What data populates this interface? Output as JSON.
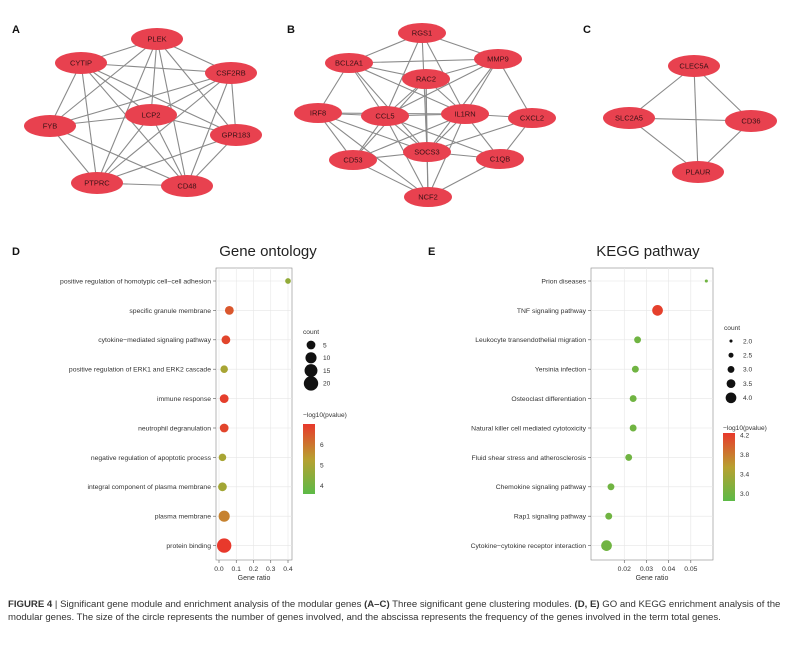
{
  "panels": {
    "a": "A",
    "b": "B",
    "c": "C",
    "d": "D",
    "e": "E"
  },
  "networks": {
    "node_color": "#e8414f",
    "edge_color": "#8a8a8a",
    "A": {
      "nodes": [
        "PLEK",
        "CYTIP",
        "CSF2RB",
        "LCP2",
        "FYB",
        "GPR183",
        "PTPRC",
        "CD48"
      ],
      "edges": [
        [
          "PLEK",
          "CYTIP"
        ],
        [
          "PLEK",
          "CSF2RB"
        ],
        [
          "PLEK",
          "LCP2"
        ],
        [
          "PLEK",
          "FYB"
        ],
        [
          "PLEK",
          "GPR183"
        ],
        [
          "PLEK",
          "PTPRC"
        ],
        [
          "PLEK",
          "CD48"
        ],
        [
          "CYTIP",
          "CSF2RB"
        ],
        [
          "CYTIP",
          "LCP2"
        ],
        [
          "CYTIP",
          "FYB"
        ],
        [
          "CYTIP",
          "GPR183"
        ],
        [
          "CYTIP",
          "PTPRC"
        ],
        [
          "CYTIP",
          "CD48"
        ],
        [
          "CSF2RB",
          "LCP2"
        ],
        [
          "CSF2RB",
          "FYB"
        ],
        [
          "CSF2RB",
          "GPR183"
        ],
        [
          "CSF2RB",
          "PTPRC"
        ],
        [
          "CSF2RB",
          "CD48"
        ],
        [
          "LCP2",
          "FYB"
        ],
        [
          "LCP2",
          "GPR183"
        ],
        [
          "LCP2",
          "PTPRC"
        ],
        [
          "LCP2",
          "CD48"
        ],
        [
          "FYB",
          "PTPRC"
        ],
        [
          "FYB",
          "CD48"
        ],
        [
          "GPR183",
          "PTPRC"
        ],
        [
          "GPR183",
          "CD48"
        ],
        [
          "PTPRC",
          "CD48"
        ]
      ]
    },
    "B": {
      "nodes": [
        "RGS1",
        "BCL2A1",
        "MMP9",
        "RAC2",
        "IRF8",
        "CCL5",
        "IL1RN",
        "CXCL2",
        "CD53",
        "SOCS3",
        "C1QB",
        "NCF2"
      ],
      "edges": [
        [
          "RGS1",
          "BCL2A1"
        ],
        [
          "RGS1",
          "MMP9"
        ],
        [
          "RGS1",
          "CCL5"
        ],
        [
          "RGS1",
          "IL1RN"
        ],
        [
          "RGS1",
          "SOCS3"
        ],
        [
          "BCL2A1",
          "RAC2"
        ],
        [
          "BCL2A1",
          "IRF8"
        ],
        [
          "BCL2A1",
          "CCL5"
        ],
        [
          "BCL2A1",
          "IL1RN"
        ],
        [
          "BCL2A1",
          "SOCS3"
        ],
        [
          "BCL2A1",
          "MMP9"
        ],
        [
          "MMP9",
          "RAC2"
        ],
        [
          "MMP9",
          "CCL5"
        ],
        [
          "MMP9",
          "IL1RN"
        ],
        [
          "MMP9",
          "CXCL2"
        ],
        [
          "MMP9",
          "SOCS3"
        ],
        [
          "RAC2",
          "CCL5"
        ],
        [
          "RAC2",
          "IL1RN"
        ],
        [
          "RAC2",
          "SOCS3"
        ],
        [
          "RAC2",
          "NCF2"
        ],
        [
          "RAC2",
          "CD53"
        ],
        [
          "IRF8",
          "CCL5"
        ],
        [
          "IRF8",
          "IL1RN"
        ],
        [
          "IRF8",
          "CD53"
        ],
        [
          "IRF8",
          "SOCS3"
        ],
        [
          "IRF8",
          "NCF2"
        ],
        [
          "CCL5",
          "IL1RN"
        ],
        [
          "CCL5",
          "CD53"
        ],
        [
          "CCL5",
          "SOCS3"
        ],
        [
          "CCL5",
          "C1QB"
        ],
        [
          "CCL5",
          "NCF2"
        ],
        [
          "IL1RN",
          "CXCL2"
        ],
        [
          "IL1RN",
          "SOCS3"
        ],
        [
          "IL1RN",
          "C1QB"
        ],
        [
          "IL1RN",
          "CD53"
        ],
        [
          "IL1RN",
          "NCF2"
        ],
        [
          "CXCL2",
          "SOCS3"
        ],
        [
          "CXCL2",
          "C1QB"
        ],
        [
          "CD53",
          "SOCS3"
        ],
        [
          "CD53",
          "NCF2"
        ],
        [
          "SOCS3",
          "C1QB"
        ],
        [
          "SOCS3",
          "NCF2"
        ],
        [
          "C1QB",
          "NCF2"
        ]
      ]
    },
    "C": {
      "nodes": [
        "CLEC5A",
        "SLC2A5",
        "CD36",
        "PLAUR"
      ],
      "edges": [
        [
          "CLEC5A",
          "SLC2A5"
        ],
        [
          "CLEC5A",
          "CD36"
        ],
        [
          "CLEC5A",
          "PLAUR"
        ],
        [
          "SLC2A5",
          "CD36"
        ],
        [
          "SLC2A5",
          "PLAUR"
        ],
        [
          "CD36",
          "PLAUR"
        ]
      ]
    }
  },
  "chart_data": [
    {
      "panel": "D",
      "type": "scatter",
      "title": "Gene ontology",
      "xlabel": "Gene ratio",
      "xticks": [
        "0.0",
        "0.1",
        "0.2",
        "0.3",
        "0.4"
      ],
      "xlim": [
        0,
        0.4
      ],
      "grid": true,
      "categories": [
        "positive regulation of homotypic cell−cell adhesion",
        "specific granule membrane",
        "cytokine−mediated signaling pathway",
        "positive regulation of ERK1 and ERK2 cascade",
        "immune response",
        "neutrophil degranulation",
        "negative regulation of apoptotic process",
        "integral component of plasma membrane",
        "plasma membrane",
        "protein binding"
      ],
      "x": [
        0.4,
        0.06,
        0.04,
        0.03,
        0.03,
        0.03,
        0.02,
        0.02,
        0.03,
        0.03
      ],
      "count": [
        1,
        5,
        5,
        3,
        5,
        5,
        3,
        5,
        10,
        20
      ],
      "log10p": [
        4.6,
        6.5,
        6.8,
        5.0,
        6.9,
        6.8,
        5.0,
        4.9,
        5.8,
        7.0
      ],
      "size_legend": {
        "title": "count",
        "values": [
          "5",
          "10",
          "15",
          "20"
        ]
      },
      "color_legend": {
        "title": "−log10(pvalue)",
        "ticks": [
          "6",
          "5",
          "4"
        ],
        "low_color": "#5cba47",
        "high_color": "#e8392c"
      }
    },
    {
      "panel": "E",
      "type": "scatter",
      "title": "KEGG pathway",
      "xlabel": "Gene ratio",
      "xticks": [
        "0.02",
        "0.03",
        "0.04",
        "0.05"
      ],
      "xlim": [
        0.005,
        0.06
      ],
      "grid": true,
      "categories": [
        "Prion diseases",
        "TNF signaling pathway",
        "Leukocyte transendothelial migration",
        "Yersinia infection",
        "Osteoclast differentiation",
        "Natural killer cell mediated cytotoxicity",
        "Fluid shear stress and atherosclerosis",
        "Chemokine signaling pathway",
        "Rap1 signaling pathway",
        "Cytokine−cytokine receptor interaction"
      ],
      "x": [
        0.057,
        0.035,
        0.026,
        0.025,
        0.024,
        0.024,
        0.022,
        0.014,
        0.013,
        0.012
      ],
      "count": [
        2,
        4,
        3,
        3,
        3,
        3,
        3,
        3,
        3,
        4
      ],
      "log10p": [
        3.0,
        4.2,
        3.0,
        3.0,
        3.0,
        3.0,
        3.0,
        3.0,
        3.0,
        3.0
      ],
      "size_legend": {
        "title": "count",
        "values": [
          "2.0",
          "2.5",
          "3.0",
          "3.5",
          "4.0"
        ]
      },
      "color_legend": {
        "title": "−log10(pvalue)",
        "ticks": [
          "4.2",
          "3.8",
          "3.4",
          "3.0"
        ],
        "low_color": "#5cba47",
        "high_color": "#e8392c"
      }
    }
  ],
  "caption": {
    "label": "FIGURE 4",
    "text_a": " | Significant gene module and enrichment analysis of the modular genes ",
    "ref_ac": "(A–C)",
    "text_b": " Three significant gene clustering modules. ",
    "ref_de": "(D, E)",
    "text_c": " GO and KEGG enrichment analysis of the modular genes. The size of the circle represents the number of genes involved, and the abscissa represents the frequency of the genes involved in the term total genes."
  }
}
